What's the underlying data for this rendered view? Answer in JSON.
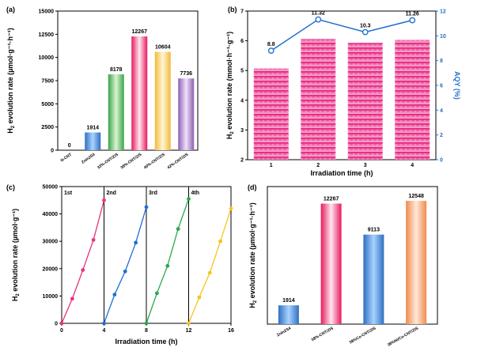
{
  "colors": {
    "blue": "#1f6fd0",
    "pink": "#e8337f",
    "green": "#2aa84a",
    "yellow": "#f4c51c"
  },
  "chart_data": [
    {
      "panel": "(a)",
      "type": "bar",
      "ylabel": "H2 evolution rate (µmol·g⁻¹·h⁻¹)",
      "ylim": [
        0,
        15000
      ],
      "yticks": [
        "0",
        "2500",
        "5000",
        "7500",
        "10000",
        "12500",
        "15000"
      ],
      "categories": [
        "N-CNT",
        "ZnIn2S4",
        "33%-CNT/ZIS",
        "38%-CNT/ZIS",
        "40%-CNT/ZIS",
        "42%-CNT/ZIS"
      ],
      "values": [
        0,
        1914,
        8178,
        12267,
        10604,
        7736
      ],
      "labels": [
        "0",
        "1914",
        "8178",
        "12267",
        "10604",
        "7736"
      ]
    },
    {
      "panel": "(b)",
      "type": "bar+line",
      "xlabel": "Irradiation time (h)",
      "ylabel": "H2 evolution rate (mmol·h⁻¹·g⁻¹)",
      "ylabel_right": "AQY (%)",
      "categories": [
        "1",
        "2",
        "3",
        "4"
      ],
      "ylim": [
        2,
        7
      ],
      "yticks": [
        "2",
        "3",
        "4",
        "5",
        "6",
        "7"
      ],
      "ylim_right": [
        0,
        12
      ],
      "yticks_right": [
        "0",
        "2",
        "4",
        "6",
        "8",
        "10",
        "12"
      ],
      "bar_values": [
        5.07,
        6.06,
        5.93,
        6.03
      ],
      "aqy_values": [
        8.8,
        11.32,
        10.3,
        11.26
      ],
      "aqy_labels": [
        "8.8",
        "11.32",
        "10.3",
        "11.26"
      ]
    },
    {
      "panel": "(c)",
      "type": "line",
      "xlabel": "Irradiation time (h)",
      "ylabel": "H2 evolution rate (µmol·g⁻¹)",
      "xlim": [
        0,
        16
      ],
      "xticks": [
        "0",
        "4",
        "8",
        "12",
        "16"
      ],
      "ylim": [
        0,
        50000
      ],
      "yticks": [
        "0",
        "10000",
        "20000",
        "30000",
        "40000",
        "50000"
      ],
      "runs": [
        "1st",
        "2nd",
        "3rd",
        "4th"
      ],
      "series": [
        {
          "x": [
            0,
            1,
            2,
            3,
            4
          ],
          "y": [
            0,
            9000,
            19500,
            30500,
            45000
          ]
        },
        {
          "x": [
            4,
            5,
            6,
            7,
            8
          ],
          "y": [
            0,
            10500,
            19000,
            29500,
            42500
          ]
        },
        {
          "x": [
            8,
            9,
            10,
            11,
            12
          ],
          "y": [
            0,
            11000,
            21000,
            34500,
            45500
          ]
        },
        {
          "x": [
            12,
            13,
            14,
            15,
            16
          ],
          "y": [
            0,
            9500,
            18500,
            30000,
            42000
          ]
        }
      ]
    },
    {
      "panel": "(d)",
      "type": "bar",
      "ylabel": "H2 evolution rate (µmol·g⁻¹·h⁻¹)",
      "ylim": [
        0,
        14000
      ],
      "categories": [
        "ZnIn2S4",
        "38%-CNT/ZIS",
        "38%Co-CNT/ZIS",
        "38%Ni/Co-CNT/ZIS"
      ],
      "values": [
        1914,
        12267,
        9113,
        12548
      ],
      "labels": [
        "1914",
        "12267",
        "9113",
        "12548"
      ]
    }
  ]
}
